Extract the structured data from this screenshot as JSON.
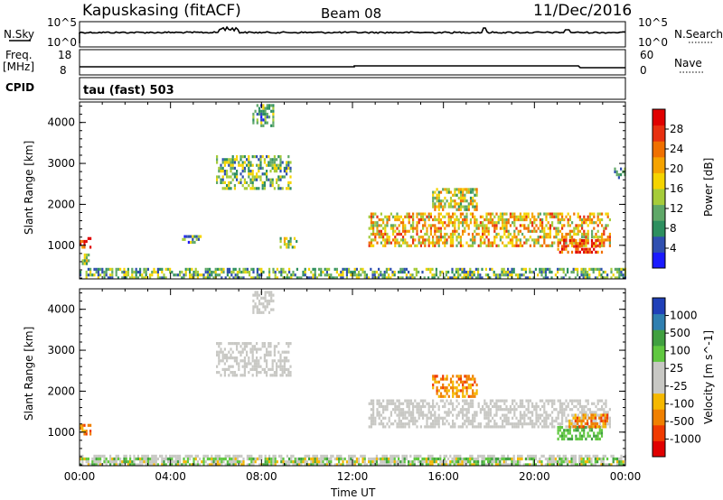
{
  "header": {
    "station": "Kapuskasing (fitACF)",
    "beam": "Beam 08",
    "date": "11/Dec/2016"
  },
  "top_panels": {
    "nsky_label": "N.Sky",
    "nsky_ticks": [
      "10^5",
      "10^0"
    ],
    "nsearch_label": "N.Search",
    "nsearch_ticks": [
      "10^5",
      "10^0"
    ],
    "freq_label": "Freq.",
    "freq_unit": "[MHz]",
    "freq_ticks": [
      "18",
      "8"
    ],
    "nave_label": "Nave",
    "nave_ticks": [
      "60",
      "0"
    ],
    "cpid_label": "CPID",
    "cpid_text": "tau (fast) 503"
  },
  "colors": {
    "power_scale": [
      "#1a1aff",
      "#2f4fb0",
      "#2d8f5f",
      "#5fa868",
      "#a6cc3a",
      "#f5d400",
      "#f5a300",
      "#f07000",
      "#e83010",
      "#e00000"
    ],
    "velocity_scale": [
      "#e00000",
      "#f03a00",
      "#f08000",
      "#f5b800",
      "#c8c8c4",
      "#c8c8c4",
      "#60c840",
      "#40a040",
      "#2f7fb0",
      "#1f40b8"
    ],
    "ground_scatter": "#c8c8c4"
  },
  "chart_data": [
    {
      "type": "heatmap",
      "name": "power",
      "xlabel": "",
      "ylabel": "Slant Range [km]",
      "x_range_hours": [
        0,
        24
      ],
      "y_range_km": [
        180,
        4500
      ],
      "y_ticks": [
        1000,
        2000,
        3000,
        4000
      ],
      "colorbar": {
        "label": "Power [dB]",
        "min": 0,
        "max": 32,
        "ticks": [
          4,
          8,
          12,
          16,
          20,
          24,
          28
        ]
      },
      "regions": [
        {
          "t": [
            0.0,
            24.0
          ],
          "r": [
            200,
            450
          ],
          "level": 0.35
        },
        {
          "t": [
            0.0,
            0.5
          ],
          "r": [
            950,
            1200
          ],
          "level": 0.8
        },
        {
          "t": [
            0.1,
            0.4
          ],
          "r": [
            550,
            800
          ],
          "level": 0.45
        },
        {
          "t": [
            6.0,
            9.3
          ],
          "r": [
            2400,
            3200
          ],
          "level": 0.35
        },
        {
          "t": [
            7.6,
            8.5
          ],
          "r": [
            3900,
            4450
          ],
          "level": 0.3
        },
        {
          "t": [
            4.5,
            5.3
          ],
          "r": [
            1050,
            1250
          ],
          "level": 0.3
        },
        {
          "t": [
            8.8,
            9.5
          ],
          "r": [
            950,
            1200
          ],
          "level": 0.45
        },
        {
          "t": [
            12.7,
            23.3
          ],
          "r": [
            1000,
            1800
          ],
          "level": 0.6
        },
        {
          "t": [
            15.5,
            17.5
          ],
          "r": [
            1900,
            2400
          ],
          "level": 0.5
        },
        {
          "t": [
            21.0,
            23.0
          ],
          "r": [
            850,
            1150
          ],
          "level": 0.85
        },
        {
          "t": [
            23.5,
            24.0
          ],
          "r": [
            2650,
            2900
          ],
          "level": 0.3
        }
      ]
    },
    {
      "type": "heatmap",
      "name": "velocity",
      "xlabel": "Time UT",
      "ylabel": "Slant Range [km]",
      "x_range_hours": [
        0,
        24
      ],
      "x_ticks": [
        "00:00",
        "04:00",
        "08:00",
        "12:00",
        "16:00",
        "20:00",
        "00:00"
      ],
      "y_range_km": [
        180,
        4500
      ],
      "y_ticks": [
        1000,
        2000,
        3000,
        4000
      ],
      "colorbar": {
        "label": "Velocity [m s^-1]",
        "ticks": [
          "1000",
          "500",
          "100",
          "25",
          "-25",
          "-100",
          "-500",
          "-1000"
        ]
      },
      "regions": [
        {
          "t": [
            0.0,
            24.0
          ],
          "r": [
            200,
            450
          ],
          "kind": "ground"
        },
        {
          "t": [
            0.0,
            24.0
          ],
          "r": [
            200,
            380
          ],
          "kind": "mixed_green_orange"
        },
        {
          "t": [
            0.0,
            0.5
          ],
          "r": [
            950,
            1200
          ],
          "kind": "orange"
        },
        {
          "t": [
            6.0,
            9.3
          ],
          "r": [
            2400,
            3200
          ],
          "kind": "ground"
        },
        {
          "t": [
            7.6,
            8.5
          ],
          "r": [
            3900,
            4450
          ],
          "kind": "ground"
        },
        {
          "t": [
            12.7,
            23.3
          ],
          "r": [
            1100,
            1800
          ],
          "kind": "ground"
        },
        {
          "t": [
            15.5,
            17.5
          ],
          "r": [
            1900,
            2400
          ],
          "kind": "orange"
        },
        {
          "t": [
            21.0,
            23.0
          ],
          "r": [
            850,
            1150
          ],
          "kind": "green"
        },
        {
          "t": [
            21.5,
            23.2
          ],
          "r": [
            1150,
            1450
          ],
          "kind": "orange"
        }
      ]
    }
  ]
}
